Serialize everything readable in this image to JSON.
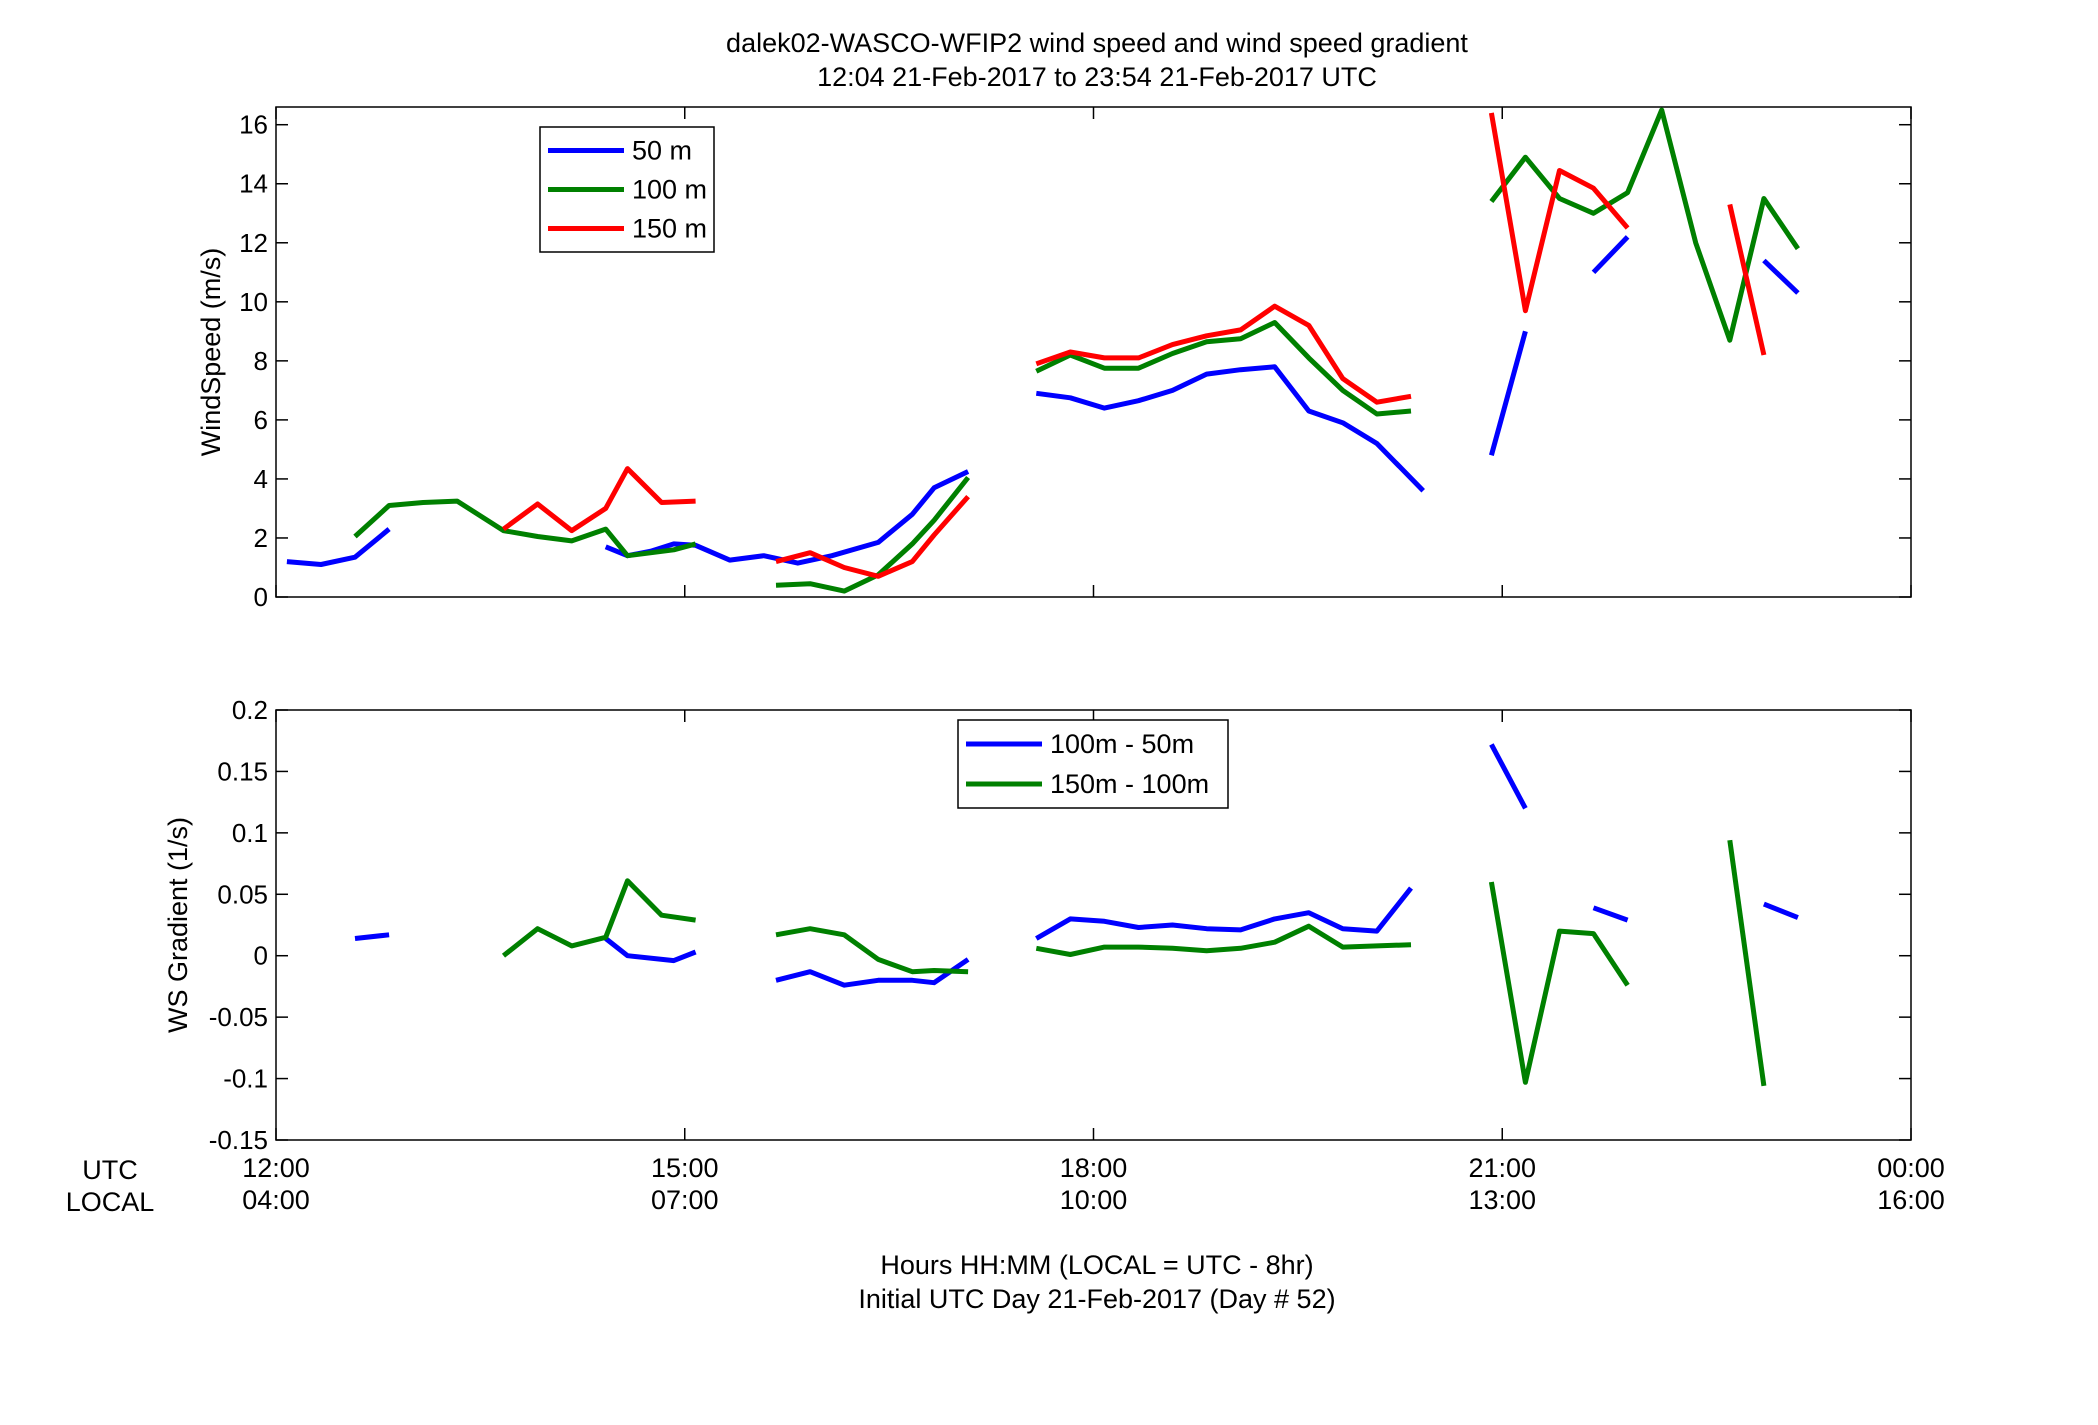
{
  "title_line1": "dalek02-WASCO-WFIP2  wind speed and wind speed gradient",
  "title_line2": "12:04 21-Feb-2017 to 23:54 21-Feb-2017  UTC",
  "xaxis": {
    "row_label_utc": "UTC",
    "row_label_local": "LOCAL",
    "ticks_utc": [
      "12:00",
      "15:00",
      "18:00",
      "21:00",
      "00:00"
    ],
    "ticks_local": [
      "04:00",
      "07:00",
      "10:00",
      "13:00",
      "16:00"
    ],
    "footer_line1": "Hours HH:MM  (LOCAL = UTC - 8hr)",
    "footer_line2": "Initial UTC Day 21-Feb-2017 (Day # 52)"
  },
  "chart_data": [
    {
      "type": "line",
      "ylabel": "WindSpeed (m/s)",
      "xlim": [
        12,
        24
      ],
      "ylim": [
        0,
        16.6
      ],
      "yticks": [
        0,
        2,
        4,
        6,
        8,
        10,
        12,
        14,
        16
      ],
      "ytick_labels": [
        "0",
        "2",
        "4",
        "6",
        "8",
        "10",
        "12",
        "14",
        "16"
      ],
      "legend_position": "top-left",
      "series": [
        {
          "name": "50 m",
          "color": "#0000ff",
          "segments": [
            [
              [
                12.08,
                1.2
              ],
              [
                12.33,
                1.1
              ],
              [
                12.58,
                1.35
              ],
              [
                12.83,
                2.3
              ]
            ],
            [
              [
                14.42,
                1.7
              ],
              [
                14.58,
                1.4
              ],
              [
                14.75,
                1.55
              ],
              [
                14.92,
                1.8
              ],
              [
                15.08,
                1.75
              ],
              [
                15.33,
                1.25
              ],
              [
                15.58,
                1.4
              ],
              [
                15.83,
                1.15
              ],
              [
                16.08,
                1.4
              ],
              [
                16.42,
                1.85
              ],
              [
                16.67,
                2.8
              ],
              [
                16.83,
                3.7
              ],
              [
                17.08,
                4.25
              ]
            ],
            [
              [
                17.58,
                6.9
              ],
              [
                17.83,
                6.75
              ],
              [
                18.08,
                6.4
              ],
              [
                18.33,
                6.65
              ],
              [
                18.58,
                7.0
              ],
              [
                18.83,
                7.55
              ],
              [
                19.08,
                7.7
              ],
              [
                19.33,
                7.8
              ],
              [
                19.58,
                6.3
              ],
              [
                19.83,
                5.9
              ],
              [
                20.08,
                5.2
              ],
              [
                20.42,
                3.6
              ]
            ],
            [
              [
                20.92,
                4.8
              ],
              [
                21.17,
                9.0
              ]
            ],
            [
              [
                21.67,
                11.0
              ],
              [
                21.92,
                12.2
              ]
            ],
            [
              [
                22.92,
                11.4
              ],
              [
                23.17,
                10.3
              ]
            ]
          ]
        },
        {
          "name": "100 m",
          "color": "#008000",
          "segments": [
            [
              [
                12.58,
                2.05
              ],
              [
                12.83,
                3.1
              ],
              [
                13.08,
                3.2
              ],
              [
                13.33,
                3.25
              ],
              [
                13.67,
                2.25
              ],
              [
                13.92,
                2.05
              ],
              [
                14.17,
                1.9
              ],
              [
                14.42,
                2.3
              ],
              [
                14.58,
                1.4
              ],
              [
                14.92,
                1.6
              ],
              [
                15.08,
                1.8
              ]
            ],
            [
              [
                15.67,
                0.4
              ],
              [
                15.92,
                0.45
              ],
              [
                16.17,
                0.2
              ],
              [
                16.42,
                0.75
              ],
              [
                16.67,
                1.8
              ],
              [
                16.83,
                2.6
              ],
              [
                17.08,
                4.05
              ]
            ],
            [
              [
                17.58,
                7.65
              ],
              [
                17.83,
                8.2
              ],
              [
                18.08,
                7.75
              ],
              [
                18.33,
                7.75
              ],
              [
                18.58,
                8.25
              ],
              [
                18.83,
                8.65
              ],
              [
                19.08,
                8.75
              ],
              [
                19.33,
                9.3
              ],
              [
                19.58,
                8.1
              ],
              [
                19.83,
                7.0
              ],
              [
                20.08,
                6.2
              ],
              [
                20.33,
                6.3
              ]
            ],
            [
              [
                20.92,
                13.4
              ],
              [
                21.17,
                14.9
              ],
              [
                21.42,
                13.5
              ],
              [
                21.67,
                13.0
              ],
              [
                21.92,
                13.7
              ],
              [
                22.17,
                16.5
              ],
              [
                22.42,
                12.0
              ],
              [
                22.67,
                8.7
              ],
              [
                22.92,
                13.5
              ],
              [
                23.17,
                11.8
              ]
            ]
          ]
        },
        {
          "name": "150 m",
          "color": "#ff0000",
          "segments": [
            [
              [
                13.67,
                2.3
              ],
              [
                13.92,
                3.15
              ],
              [
                14.17,
                2.25
              ],
              [
                14.42,
                3.0
              ],
              [
                14.58,
                4.35
              ],
              [
                14.83,
                3.2
              ],
              [
                15.08,
                3.25
              ]
            ],
            [
              [
                15.67,
                1.2
              ],
              [
                15.92,
                1.5
              ],
              [
                16.17,
                1.0
              ],
              [
                16.42,
                0.7
              ],
              [
                16.67,
                1.2
              ],
              [
                16.83,
                2.1
              ],
              [
                17.08,
                3.4
              ]
            ],
            [
              [
                17.58,
                7.9
              ],
              [
                17.83,
                8.3
              ],
              [
                18.08,
                8.1
              ],
              [
                18.33,
                8.1
              ],
              [
                18.58,
                8.55
              ],
              [
                18.83,
                8.85
              ],
              [
                19.08,
                9.05
              ],
              [
                19.33,
                9.85
              ],
              [
                19.58,
                9.2
              ],
              [
                19.83,
                7.4
              ],
              [
                20.08,
                6.6
              ],
              [
                20.33,
                6.8
              ]
            ],
            [
              [
                20.92,
                16.4
              ],
              [
                21.17,
                9.7
              ],
              [
                21.42,
                14.45
              ],
              [
                21.67,
                13.85
              ],
              [
                21.92,
                12.5
              ]
            ],
            [
              [
                22.67,
                13.3
              ],
              [
                22.92,
                8.2
              ]
            ]
          ]
        }
      ]
    },
    {
      "type": "line",
      "ylabel": "WS Gradient (1/s)",
      "xlim": [
        12,
        24
      ],
      "ylim": [
        -0.15,
        0.2
      ],
      "yticks": [
        -0.15,
        -0.1,
        -0.05,
        0,
        0.05,
        0.1,
        0.15,
        0.2
      ],
      "ytick_labels": [
        "-0.15",
        "-0.1",
        "-0.05",
        "0",
        "0.05",
        "0.1",
        "0.15",
        "0.2"
      ],
      "legend_position": "top-center",
      "series": [
        {
          "name": "100m - 50m",
          "color": "#0000ff",
          "segments": [
            [
              [
                12.58,
                0.014
              ],
              [
                12.83,
                0.017
              ]
            ],
            [
              [
                14.42,
                0.014
              ],
              [
                14.58,
                0.0
              ],
              [
                14.92,
                -0.004
              ],
              [
                15.08,
                0.003
              ]
            ],
            [
              [
                15.67,
                -0.02
              ],
              [
                15.92,
                -0.013
              ],
              [
                16.17,
                -0.024
              ],
              [
                16.42,
                -0.02
              ],
              [
                16.67,
                -0.02
              ],
              [
                16.83,
                -0.022
              ],
              [
                17.08,
                -0.003
              ]
            ],
            [
              [
                17.58,
                0.014
              ],
              [
                17.83,
                0.03
              ],
              [
                18.08,
                0.028
              ],
              [
                18.33,
                0.023
              ],
              [
                18.58,
                0.025
              ],
              [
                18.83,
                0.022
              ],
              [
                19.08,
                0.021
              ],
              [
                19.33,
                0.03
              ],
              [
                19.58,
                0.035
              ],
              [
                19.83,
                0.022
              ],
              [
                20.08,
                0.02
              ],
              [
                20.33,
                0.055
              ]
            ],
            [
              [
                20.92,
                0.172
              ],
              [
                21.17,
                0.12
              ]
            ],
            [
              [
                21.67,
                0.039
              ],
              [
                21.92,
                0.029
              ]
            ],
            [
              [
                22.92,
                0.042
              ],
              [
                23.17,
                0.031
              ]
            ]
          ]
        },
        {
          "name": "150m - 100m",
          "color": "#008000",
          "segments": [
            [
              [
                13.67,
                0.0
              ],
              [
                13.92,
                0.022
              ],
              [
                14.17,
                0.008
              ],
              [
                14.42,
                0.015
              ],
              [
                14.58,
                0.061
              ],
              [
                14.83,
                0.033
              ],
              [
                15.08,
                0.029
              ]
            ],
            [
              [
                15.67,
                0.017
              ],
              [
                15.92,
                0.022
              ],
              [
                16.17,
                0.017
              ],
              [
                16.42,
                -0.003
              ],
              [
                16.67,
                -0.013
              ],
              [
                16.83,
                -0.012
              ],
              [
                17.08,
                -0.013
              ]
            ],
            [
              [
                17.58,
                0.006
              ],
              [
                17.83,
                0.001
              ],
              [
                18.08,
                0.007
              ],
              [
                18.33,
                0.007
              ],
              [
                18.58,
                0.006
              ],
              [
                18.83,
                0.004
              ],
              [
                19.08,
                0.006
              ],
              [
                19.33,
                0.011
              ],
              [
                19.58,
                0.024
              ],
              [
                19.83,
                0.007
              ],
              [
                20.08,
                0.008
              ],
              [
                20.33,
                0.009
              ]
            ],
            [
              [
                20.92,
                0.06
              ],
              [
                21.17,
                -0.103
              ],
              [
                21.42,
                0.02
              ],
              [
                21.67,
                0.018
              ],
              [
                21.92,
                -0.024
              ]
            ],
            [
              [
                22.67,
                0.094
              ],
              [
                22.92,
                -0.106
              ]
            ]
          ]
        }
      ]
    }
  ]
}
